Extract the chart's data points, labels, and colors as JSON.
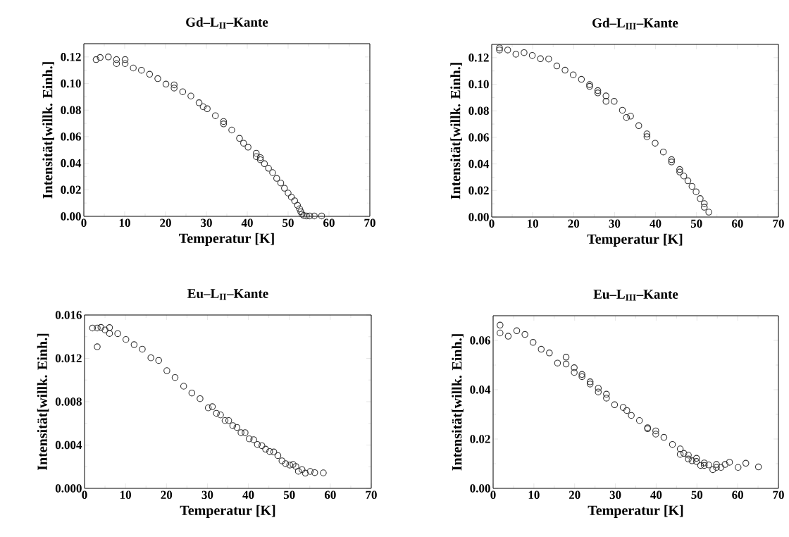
{
  "chart_data": [
    {
      "type": "scatter",
      "title": "Gd–L$_{II}$–Kante",
      "xlabel": "Temperatur [K]",
      "ylabel": "Intensität[willk. Einh.]",
      "marker": "circle",
      "xlim": [
        0,
        70
      ],
      "ylim": [
        0,
        0.13
      ],
      "xticks": [
        0,
        10,
        20,
        30,
        40,
        50,
        60,
        70
      ],
      "yticks": [
        {
          "value": 0,
          "label": "0.00"
        },
        {
          "value": 0.02,
          "label": "0.02"
        },
        {
          "value": 0.04,
          "label": "0.04"
        },
        {
          "value": 0.06,
          "label": "0.06"
        },
        {
          "value": 0.08,
          "label": "0.08"
        },
        {
          "value": 0.1,
          "label": "0.10"
        },
        {
          "value": 0.12,
          "label": "0.12"
        }
      ],
      "series": [
        {
          "color": "#333333",
          "x": [
            3.0,
            4.0,
            6.0,
            8.0,
            8.0,
            10.1,
            10.1,
            12.1,
            14.1,
            16.1,
            18.1,
            20.1,
            22.1,
            22.1,
            24.2,
            26.2,
            28.2,
            29.2,
            30.2,
            32.2,
            34.2,
            34.2,
            36.2,
            38.1,
            39.1,
            40.2,
            42.2,
            42.2,
            43.2,
            43.2,
            44.2,
            45.2,
            46.2,
            47.2,
            48.2,
            49.1,
            50.0,
            50.8,
            51.6,
            52.3,
            52.8,
            53.1,
            53.4,
            53.8,
            54.5,
            55.3,
            56.4,
            58.2
          ],
          "values": [
            0.118,
            0.1196,
            0.12,
            0.118,
            0.115,
            0.118,
            0.115,
            0.1117,
            0.11,
            0.107,
            0.1037,
            0.0996,
            0.099,
            0.0966,
            0.0938,
            0.0906,
            0.0855,
            0.0825,
            0.081,
            0.0758,
            0.0714,
            0.0696,
            0.065,
            0.0587,
            0.0551,
            0.0521,
            0.0475,
            0.045,
            0.0442,
            0.0426,
            0.0396,
            0.0362,
            0.0329,
            0.0286,
            0.0251,
            0.0212,
            0.0175,
            0.0145,
            0.0117,
            0.0083,
            0.0057,
            0.0035,
            0.0016,
            0.0007,
            0.0003,
            0.0003,
            0.0003,
            0.0003
          ]
        }
      ]
    },
    {
      "type": "scatter",
      "title": "Gd–L$_{III}$–Kante",
      "xlabel": "Temperatur [K]",
      "ylabel": "Intensität[willk. Einh.]",
      "marker": "circle",
      "xlim": [
        0,
        70
      ],
      "ylim": [
        0,
        0.13
      ],
      "xticks": [
        0,
        10,
        20,
        30,
        40,
        50,
        60,
        70
      ],
      "yticks": [
        {
          "value": 0,
          "label": "0.00"
        },
        {
          "value": 0.02,
          "label": "0.02"
        },
        {
          "value": 0.04,
          "label": "0.04"
        },
        {
          "value": 0.06,
          "label": "0.06"
        },
        {
          "value": 0.08,
          "label": "0.08"
        },
        {
          "value": 0.1,
          "label": "0.10"
        },
        {
          "value": 0.12,
          "label": "0.12"
        }
      ],
      "series": [
        {
          "color": "#333333",
          "x": [
            1.9,
            1.9,
            3.9,
            5.9,
            7.9,
            9.9,
            11.9,
            13.9,
            15.9,
            17.9,
            19.9,
            21.9,
            23.9,
            23.9,
            25.9,
            25.9,
            27.9,
            27.9,
            29.9,
            31.9,
            32.9,
            33.9,
            35.9,
            37.9,
            37.9,
            39.9,
            41.9,
            43.9,
            43.9,
            45.9,
            45.9,
            46.9,
            47.9,
            48.9,
            49.9,
            50.9,
            51.9,
            51.9,
            53.0
          ],
          "values": [
            0.1274,
            0.1258,
            0.1258,
            0.1226,
            0.1238,
            0.1217,
            0.1192,
            0.119,
            0.1138,
            0.1106,
            0.1071,
            0.1037,
            0.0997,
            0.0984,
            0.0952,
            0.0935,
            0.0912,
            0.0871,
            0.0871,
            0.0804,
            0.075,
            0.076,
            0.0688,
            0.0626,
            0.0605,
            0.0556,
            0.049,
            0.0432,
            0.0415,
            0.0358,
            0.0339,
            0.0309,
            0.0273,
            0.0231,
            0.019,
            0.0139,
            0.0101,
            0.0074,
            0.0037
          ]
        }
      ]
    },
    {
      "type": "scatter",
      "title": "Eu–L$_{II}$–Kante",
      "xlabel": "Temperatur [K]",
      "ylabel": "Intensität[willk. Einh.]",
      "marker": "circle",
      "xlim": [
        0,
        70
      ],
      "ylim": [
        0,
        0.016
      ],
      "xticks": [
        0,
        10,
        20,
        30,
        40,
        50,
        60,
        70
      ],
      "yticks": [
        {
          "value": 0,
          "label": "0.000"
        },
        {
          "value": 0.004,
          "label": "0.004"
        },
        {
          "value": 0.008,
          "label": "0.008"
        },
        {
          "value": 0.012,
          "label": "0.012"
        },
        {
          "value": 0.016,
          "label": "0.016"
        }
      ],
      "series": [
        {
          "color": "#333333",
          "x": [
            1.95,
            3.1,
            3.1,
            4.0,
            5.0,
            6.1,
            6.1,
            8.1,
            10.1,
            12.1,
            14.1,
            16.2,
            18.1,
            20.1,
            22.1,
            24.2,
            26.2,
            28.2,
            30.2,
            31.2,
            32.2,
            33.2,
            34.3,
            35.2,
            36.2,
            37.2,
            38.2,
            39.2,
            40.2,
            41.3,
            42.2,
            43.3,
            44.2,
            45.2,
            46.2,
            47.2,
            48.2,
            49.1,
            50.1,
            50.9,
            51.6,
            52.2,
            53.1,
            53.9,
            55.1,
            56.2,
            58.3
          ],
          "values": [
            0.0148,
            0.01307,
            0.0148,
            0.01486,
            0.01462,
            0.01484,
            0.0143,
            0.01428,
            0.01374,
            0.01326,
            0.01285,
            0.01205,
            0.01181,
            0.01086,
            0.01023,
            0.00943,
            0.0088,
            0.00828,
            0.00743,
            0.00754,
            0.00693,
            0.00678,
            0.00626,
            0.00626,
            0.00579,
            0.00563,
            0.00514,
            0.00514,
            0.00457,
            0.00449,
            0.00405,
            0.00394,
            0.00362,
            0.0034,
            0.00336,
            0.00303,
            0.00254,
            0.00228,
            0.00215,
            0.00221,
            0.00202,
            0.00158,
            0.00173,
            0.00141,
            0.00156,
            0.00145,
            0.00143
          ]
        }
      ]
    },
    {
      "type": "scatter",
      "title": "Eu–L$_{III}$–Kante",
      "xlabel": "Temperatur [K]",
      "ylabel": "Intensität[willk. Einh.]",
      "marker": "circle",
      "xlim": [
        0,
        70
      ],
      "ylim": [
        0,
        0.07
      ],
      "xticks": [
        0,
        10,
        20,
        30,
        40,
        50,
        60,
        70
      ],
      "yticks": [
        {
          "value": 0,
          "label": "0.00"
        },
        {
          "value": 0.02,
          "label": "0.02"
        },
        {
          "value": 0.04,
          "label": "0.04"
        },
        {
          "value": 0.06,
          "label": "0.06"
        }
      ],
      "series": [
        {
          "color": "#333333",
          "x": [
            1.7,
            1.7,
            3.7,
            5.8,
            7.8,
            9.8,
            11.8,
            13.8,
            15.8,
            17.9,
            17.9,
            19.9,
            19.9,
            21.8,
            21.8,
            23.8,
            23.8,
            25.8,
            25.8,
            27.8,
            27.8,
            29.8,
            31.9,
            32.8,
            33.9,
            35.9,
            37.9,
            37.9,
            39.9,
            39.9,
            41.9,
            44.0,
            45.9,
            45.9,
            46.8,
            47.9,
            47.9,
            48.8,
            49.9,
            49.9,
            50.9,
            51.8,
            51.8,
            52.9,
            53.9,
            54.8,
            54.8,
            55.9,
            56.9,
            58.0,
            60.1,
            62.0,
            65.1
          ],
          "values": [
            0.0662,
            0.063,
            0.0617,
            0.0639,
            0.0624,
            0.0592,
            0.0564,
            0.0549,
            0.0508,
            0.0532,
            0.0504,
            0.0489,
            0.047,
            0.0462,
            0.0453,
            0.0432,
            0.0423,
            0.0406,
            0.0391,
            0.0382,
            0.0366,
            0.0339,
            0.0328,
            0.0316,
            0.0296,
            0.0275,
            0.0246,
            0.0242,
            0.0233,
            0.022,
            0.0207,
            0.0178,
            0.016,
            0.0138,
            0.0142,
            0.0135,
            0.0119,
            0.0112,
            0.0122,
            0.0109,
            0.0093,
            0.0103,
            0.0093,
            0.0095,
            0.0076,
            0.0097,
            0.0085,
            0.0085,
            0.0097,
            0.0106,
            0.0085,
            0.0102,
            0.0087
          ]
        }
      ]
    }
  ]
}
